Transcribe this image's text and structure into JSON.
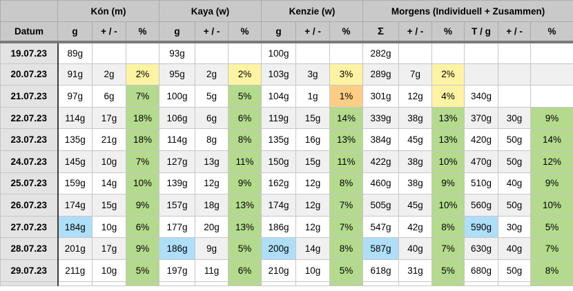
{
  "header": {
    "groups": [
      {
        "label": "",
        "span": 1
      },
      {
        "label": "Kón (m)",
        "span": 3
      },
      {
        "label": "Kaya (w)",
        "span": 3
      },
      {
        "label": "Kenzie (w)",
        "span": 3
      },
      {
        "label": "Morgens (Individuell + Zusammen)",
        "span": 6
      }
    ],
    "columns": [
      "Datum",
      "g",
      "+ / -",
      "%",
      "g",
      "+ / -",
      "%",
      "g",
      "+ / -",
      "%",
      "Σ",
      "+ / -",
      "%",
      "T / g",
      "+ / -",
      "%"
    ]
  },
  "colors": {
    "highlight_yellow": "#fdf3a2",
    "highlight_green": "#b4da8e",
    "highlight_orange": "#fcce85",
    "highlight_blue": "#aedef8",
    "header_gray": "#c9c9c9",
    "date_column_gray": "#e3e3e3",
    "stripe_gray": "#f0f0f0"
  },
  "rows": [
    {
      "date": "19.07.23",
      "cells": [
        {
          "v": "89g"
        },
        {
          "v": ""
        },
        {
          "v": ""
        },
        {
          "v": "93g"
        },
        {
          "v": ""
        },
        {
          "v": ""
        },
        {
          "v": "100g"
        },
        {
          "v": ""
        },
        {
          "v": ""
        },
        {
          "v": "282g"
        },
        {
          "v": ""
        },
        {
          "v": ""
        },
        {
          "v": ""
        },
        {
          "v": ""
        },
        {
          "v": ""
        }
      ]
    },
    {
      "date": "20.07.23",
      "cells": [
        {
          "v": "91g"
        },
        {
          "v": "2g"
        },
        {
          "v": "2%",
          "bg": "yellow"
        },
        {
          "v": "95g"
        },
        {
          "v": "2g"
        },
        {
          "v": "2%",
          "bg": "yellow"
        },
        {
          "v": "103g"
        },
        {
          "v": "3g"
        },
        {
          "v": "3%",
          "bg": "yellow"
        },
        {
          "v": "289g"
        },
        {
          "v": "7g"
        },
        {
          "v": "2%",
          "bg": "yellow"
        },
        {
          "v": ""
        },
        {
          "v": ""
        },
        {
          "v": ""
        }
      ]
    },
    {
      "date": "21.07.23",
      "cells": [
        {
          "v": "97g"
        },
        {
          "v": "6g"
        },
        {
          "v": "7%",
          "bg": "green"
        },
        {
          "v": "100g"
        },
        {
          "v": "5g"
        },
        {
          "v": "5%",
          "bg": "green"
        },
        {
          "v": "104g"
        },
        {
          "v": "1g"
        },
        {
          "v": "1%",
          "bg": "orange"
        },
        {
          "v": "301g"
        },
        {
          "v": "12g"
        },
        {
          "v": "4%",
          "bg": "yellow"
        },
        {
          "v": "340g"
        },
        {
          "v": ""
        },
        {
          "v": ""
        }
      ]
    },
    {
      "date": "22.07.23",
      "cells": [
        {
          "v": "114g"
        },
        {
          "v": "17g"
        },
        {
          "v": "18%",
          "bg": "green"
        },
        {
          "v": "106g"
        },
        {
          "v": "6g"
        },
        {
          "v": "6%",
          "bg": "green"
        },
        {
          "v": "119g"
        },
        {
          "v": "15g"
        },
        {
          "v": "14%",
          "bg": "green"
        },
        {
          "v": "339g"
        },
        {
          "v": "38g"
        },
        {
          "v": "13%",
          "bg": "green"
        },
        {
          "v": "370g"
        },
        {
          "v": "30g"
        },
        {
          "v": "9%",
          "bg": "green"
        }
      ]
    },
    {
      "date": "23.07.23",
      "cells": [
        {
          "v": "135g"
        },
        {
          "v": "21g"
        },
        {
          "v": "18%",
          "bg": "green"
        },
        {
          "v": "114g"
        },
        {
          "v": "8g"
        },
        {
          "v": "8%",
          "bg": "green"
        },
        {
          "v": "135g"
        },
        {
          "v": "16g"
        },
        {
          "v": "13%",
          "bg": "green"
        },
        {
          "v": "384g"
        },
        {
          "v": "45g"
        },
        {
          "v": "13%",
          "bg": "green"
        },
        {
          "v": "420g"
        },
        {
          "v": "50g"
        },
        {
          "v": "14%",
          "bg": "green"
        }
      ]
    },
    {
      "date": "24.07.23",
      "cells": [
        {
          "v": "145g"
        },
        {
          "v": "10g"
        },
        {
          "v": "7%",
          "bg": "green"
        },
        {
          "v": "127g"
        },
        {
          "v": "13g"
        },
        {
          "v": "11%",
          "bg": "green"
        },
        {
          "v": "150g"
        },
        {
          "v": "15g"
        },
        {
          "v": "11%",
          "bg": "green"
        },
        {
          "v": "422g"
        },
        {
          "v": "38g"
        },
        {
          "v": "10%",
          "bg": "green"
        },
        {
          "v": "470g"
        },
        {
          "v": "50g"
        },
        {
          "v": "12%",
          "bg": "green"
        }
      ]
    },
    {
      "date": "25.07.23",
      "cells": [
        {
          "v": "159g"
        },
        {
          "v": "14g"
        },
        {
          "v": "10%",
          "bg": "green"
        },
        {
          "v": "139g"
        },
        {
          "v": "12g"
        },
        {
          "v": "9%",
          "bg": "green"
        },
        {
          "v": "162g"
        },
        {
          "v": "12g"
        },
        {
          "v": "8%",
          "bg": "green"
        },
        {
          "v": "460g"
        },
        {
          "v": "38g"
        },
        {
          "v": "9%",
          "bg": "green"
        },
        {
          "v": "510g"
        },
        {
          "v": "40g"
        },
        {
          "v": "9%",
          "bg": "green"
        }
      ]
    },
    {
      "date": "26.07.23",
      "cells": [
        {
          "v": "174g"
        },
        {
          "v": "15g"
        },
        {
          "v": "9%",
          "bg": "green"
        },
        {
          "v": "157g"
        },
        {
          "v": "18g"
        },
        {
          "v": "13%",
          "bg": "green"
        },
        {
          "v": "174g"
        },
        {
          "v": "12g"
        },
        {
          "v": "7%",
          "bg": "green"
        },
        {
          "v": "505g"
        },
        {
          "v": "45g"
        },
        {
          "v": "10%",
          "bg": "green"
        },
        {
          "v": "560g"
        },
        {
          "v": "50g"
        },
        {
          "v": "10%",
          "bg": "green"
        }
      ]
    },
    {
      "date": "27.07.23",
      "cells": [
        {
          "v": "184g",
          "bg": "blue"
        },
        {
          "v": "10g"
        },
        {
          "v": "6%",
          "bg": "green"
        },
        {
          "v": "177g"
        },
        {
          "v": "20g"
        },
        {
          "v": "13%",
          "bg": "green"
        },
        {
          "v": "186g"
        },
        {
          "v": "12g"
        },
        {
          "v": "7%",
          "bg": "green"
        },
        {
          "v": "547g"
        },
        {
          "v": "42g"
        },
        {
          "v": "8%",
          "bg": "green"
        },
        {
          "v": "590g",
          "bg": "blue"
        },
        {
          "v": "30g"
        },
        {
          "v": "5%",
          "bg": "green"
        }
      ]
    },
    {
      "date": "28.07.23",
      "cells": [
        {
          "v": "201g"
        },
        {
          "v": "17g"
        },
        {
          "v": "9%",
          "bg": "green"
        },
        {
          "v": "186g",
          "bg": "blue"
        },
        {
          "v": "9g"
        },
        {
          "v": "5%",
          "bg": "green"
        },
        {
          "v": "200g",
          "bg": "blue"
        },
        {
          "v": "14g"
        },
        {
          "v": "8%",
          "bg": "green"
        },
        {
          "v": "587g",
          "bg": "blue"
        },
        {
          "v": "40g"
        },
        {
          "v": "7%",
          "bg": "green"
        },
        {
          "v": "630g"
        },
        {
          "v": "40g"
        },
        {
          "v": "7%",
          "bg": "green"
        }
      ]
    },
    {
      "date": "29.07.23",
      "cells": [
        {
          "v": "211g"
        },
        {
          "v": "10g"
        },
        {
          "v": "5%",
          "bg": "green"
        },
        {
          "v": "197g"
        },
        {
          "v": "11g"
        },
        {
          "v": "6%",
          "bg": "green"
        },
        {
          "v": "210g"
        },
        {
          "v": "10g"
        },
        {
          "v": "5%",
          "bg": "green"
        },
        {
          "v": "618g"
        },
        {
          "v": "31g"
        },
        {
          "v": "5%",
          "bg": "green"
        },
        {
          "v": "680g"
        },
        {
          "v": "50g"
        },
        {
          "v": "8%",
          "bg": "green"
        }
      ]
    }
  ],
  "partial_row": {
    "cells": [
      {
        "v": ""
      },
      {
        "v": ""
      },
      {
        "v": "",
        "bg": "green"
      },
      {
        "v": ""
      },
      {
        "v": ""
      },
      {
        "v": "",
        "bg": "green"
      },
      {
        "v": ""
      },
      {
        "v": ""
      },
      {
        "v": "",
        "bg": "green"
      },
      {
        "v": ""
      },
      {
        "v": ""
      },
      {
        "v": "",
        "bg": "green"
      },
      {
        "v": ""
      },
      {
        "v": ""
      },
      {
        "v": "",
        "bg": "green"
      }
    ]
  }
}
